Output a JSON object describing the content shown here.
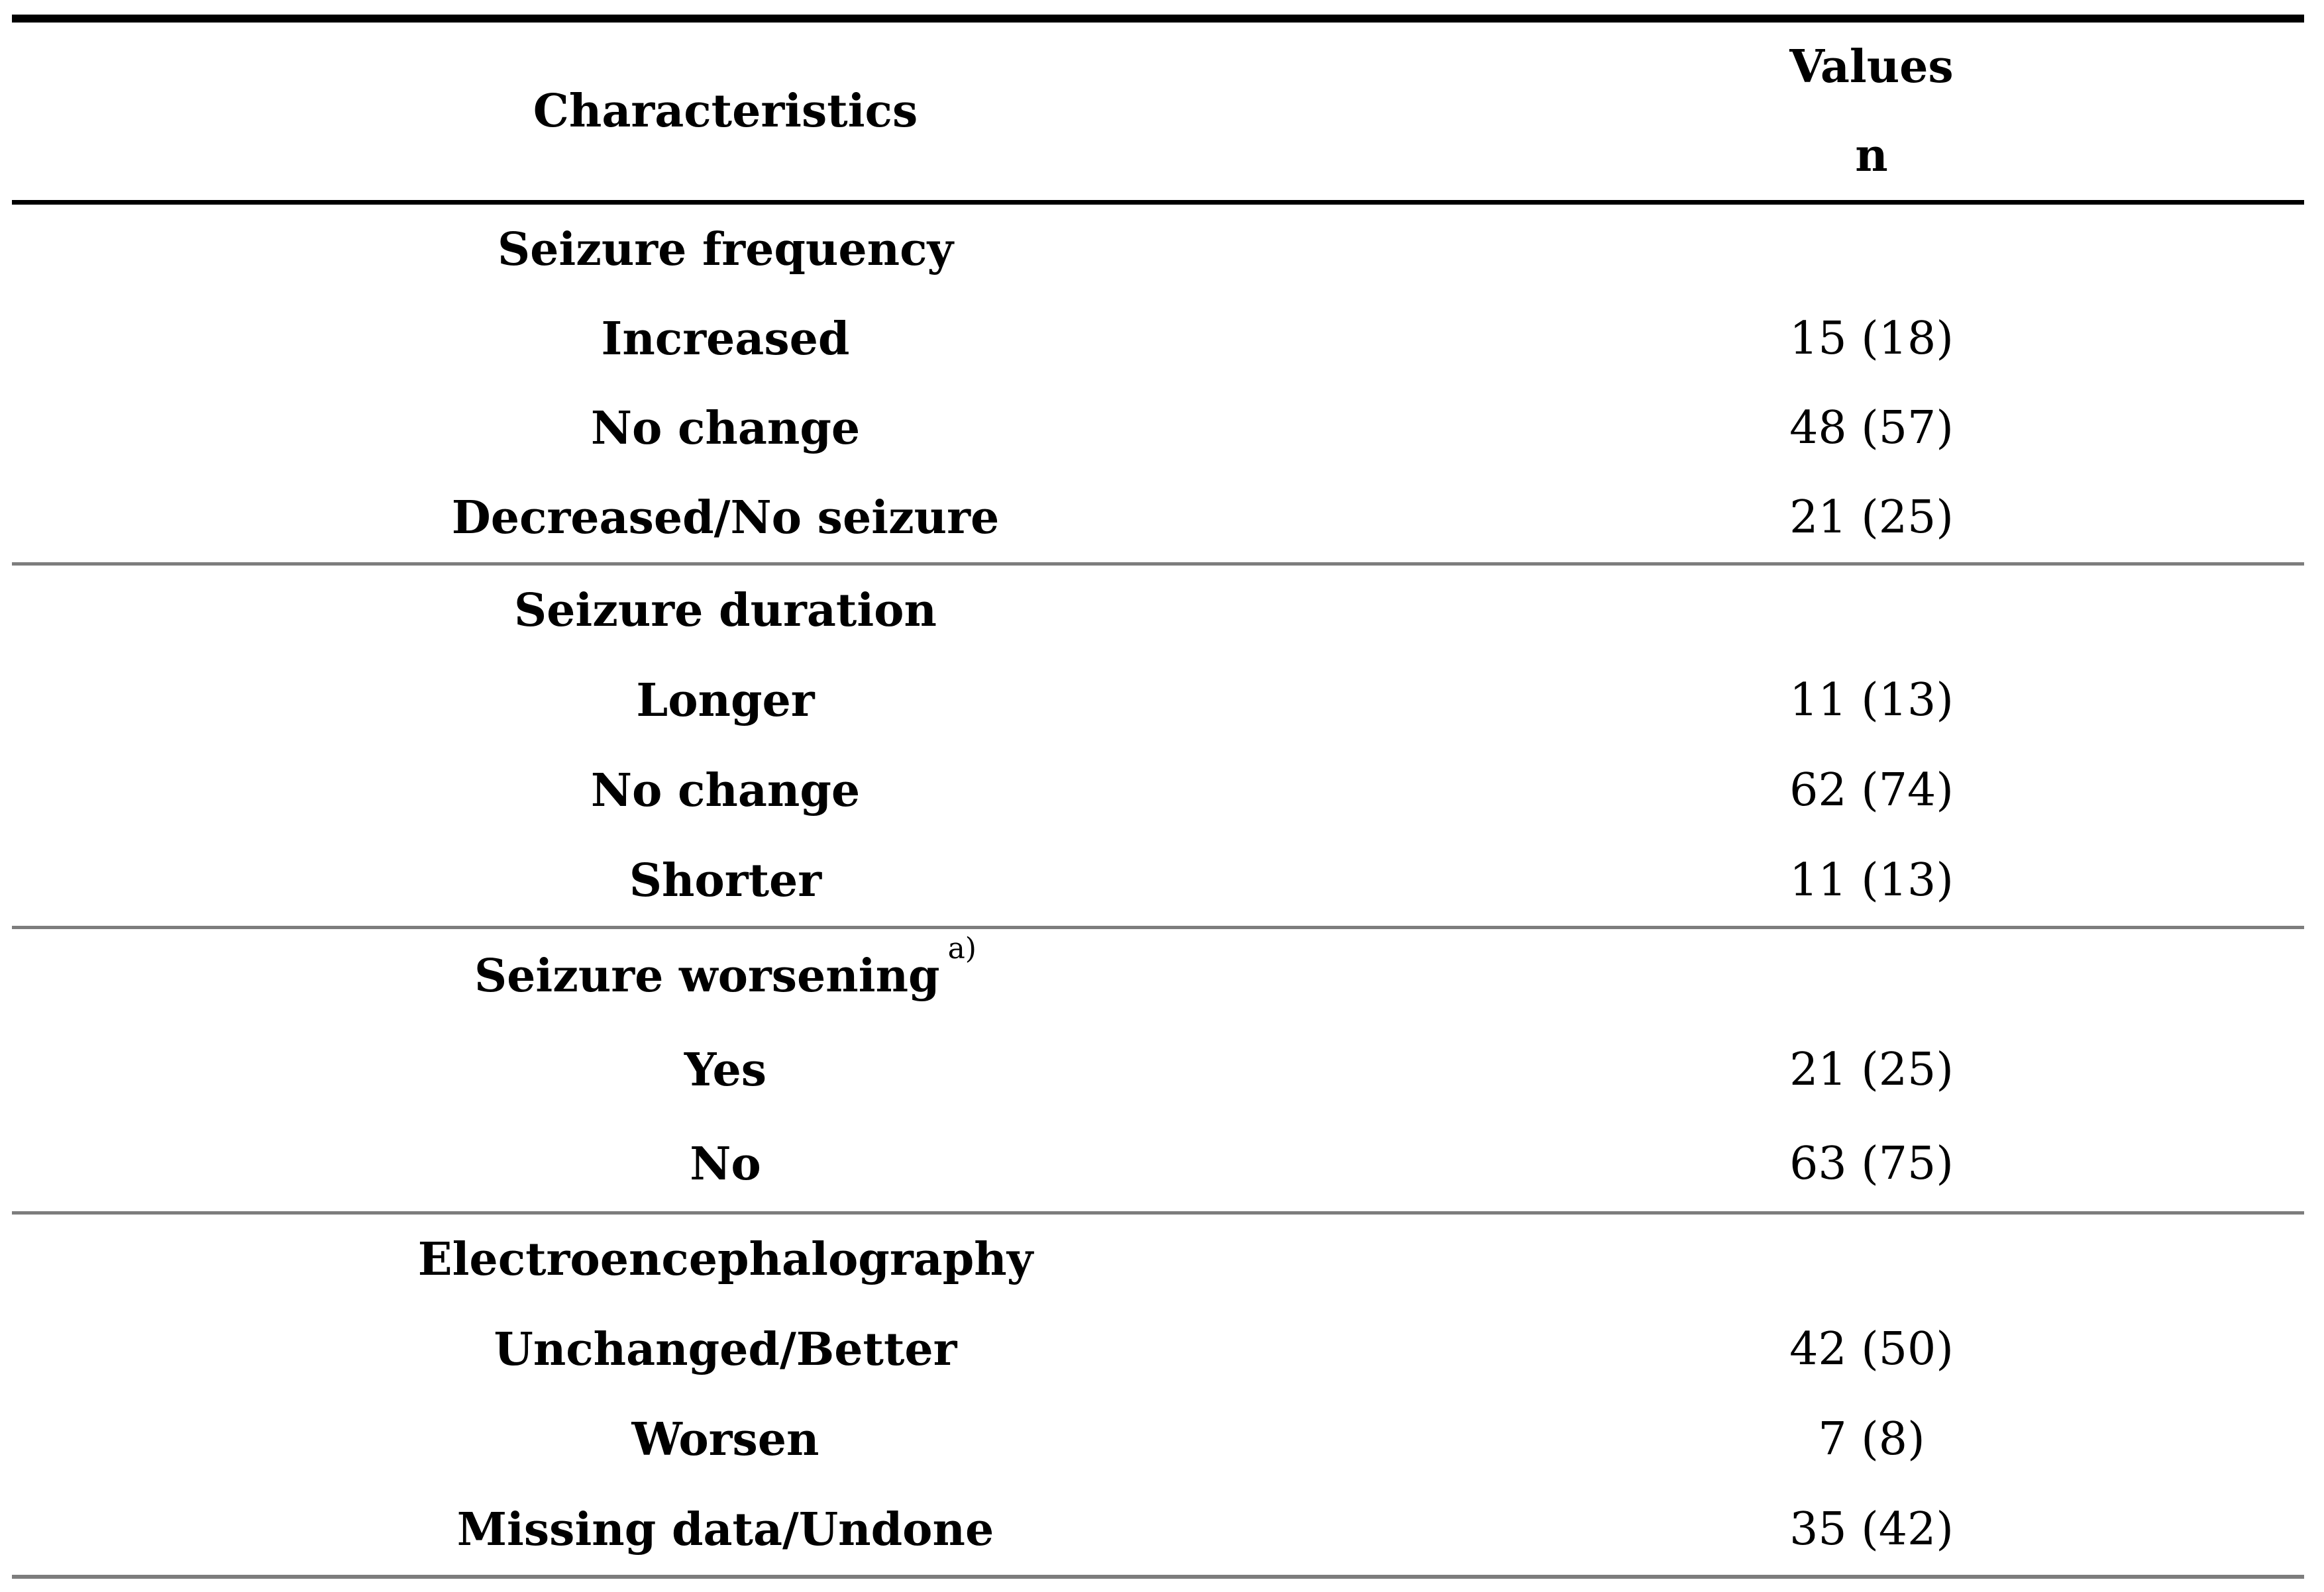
{
  "table": {
    "header": {
      "characteristics": "Characteristics",
      "values": "Values",
      "n": "n"
    },
    "sections": [
      {
        "title": "Seizure frequency",
        "superscript": "",
        "rows": [
          {
            "label": "Increased",
            "value": "15 (18)"
          },
          {
            "label": "No change",
            "value": "48 (57)"
          },
          {
            "label": "Decreased/No seizure",
            "value": "21 (25)"
          }
        ]
      },
      {
        "title": "Seizure duration",
        "superscript": "",
        "rows": [
          {
            "label": "Longer",
            "value": "11 (13)"
          },
          {
            "label": "No change",
            "value": "62 (74)"
          },
          {
            "label": "Shorter",
            "value": "11 (13)"
          }
        ]
      },
      {
        "title": "Seizure worsening",
        "superscript": "a)",
        "rows": [
          {
            "label": "Yes",
            "value": "21 (25)"
          },
          {
            "label": "No",
            "value": "63 (75)"
          }
        ]
      },
      {
        "title": "Electroencephalography",
        "superscript": "",
        "rows": [
          {
            "label": "Unchanged/Better",
            "value": "42 (50)"
          },
          {
            "label": "Worsen",
            "value": "7 (8)"
          },
          {
            "label": "Missing data/Undone",
            "value": "35 (42)"
          }
        ]
      }
    ],
    "colors": {
      "text": "#000000",
      "rule_black": "#000000",
      "rule_gray": "#7d7d7d",
      "background": "#ffffff"
    }
  }
}
